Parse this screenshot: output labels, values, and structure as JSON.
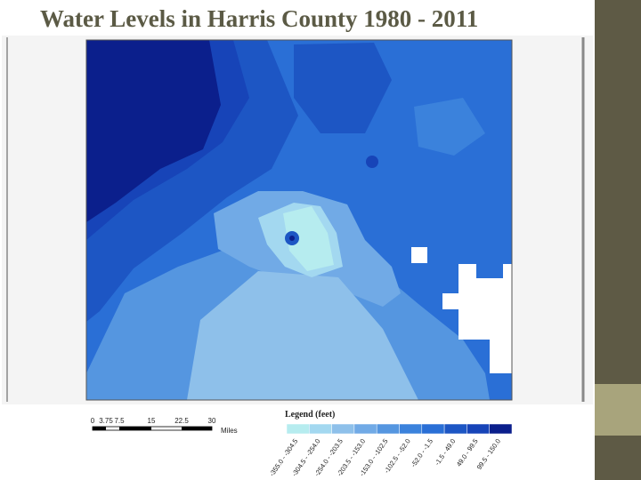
{
  "title": "Water Levels in Harris County 1980 - 2011",
  "scale_bar": {
    "labels": [
      "0",
      "3.75",
      "7.5",
      "15",
      "22.5",
      "30"
    ],
    "unit": "Miles"
  },
  "legend": {
    "title": "Legend (feet)",
    "classes": [
      {
        "label": "-355.0 - -304.5",
        "color": "#b6ecef"
      },
      {
        "label": "-304.5 - -254.0",
        "color": "#a3d8f0"
      },
      {
        "label": "-254.0 - -203.5",
        "color": "#8ec0ea"
      },
      {
        "label": "-203.5 - -153.0",
        "color": "#71aae6"
      },
      {
        "label": "-153.0 - -102.5",
        "color": "#5596e0"
      },
      {
        "label": "-102.5 - -52.0",
        "color": "#3b82dc"
      },
      {
        "label": "-52.0 - -1.5",
        "color": "#2a6fd6"
      },
      {
        "label": "-1.5 - 49.0",
        "color": "#1d56c4"
      },
      {
        "label": "49.0 - 99.5",
        "color": "#1744b8"
      },
      {
        "label": "99.5 - 150.0",
        "color": "#0b1f8c"
      }
    ]
  }
}
